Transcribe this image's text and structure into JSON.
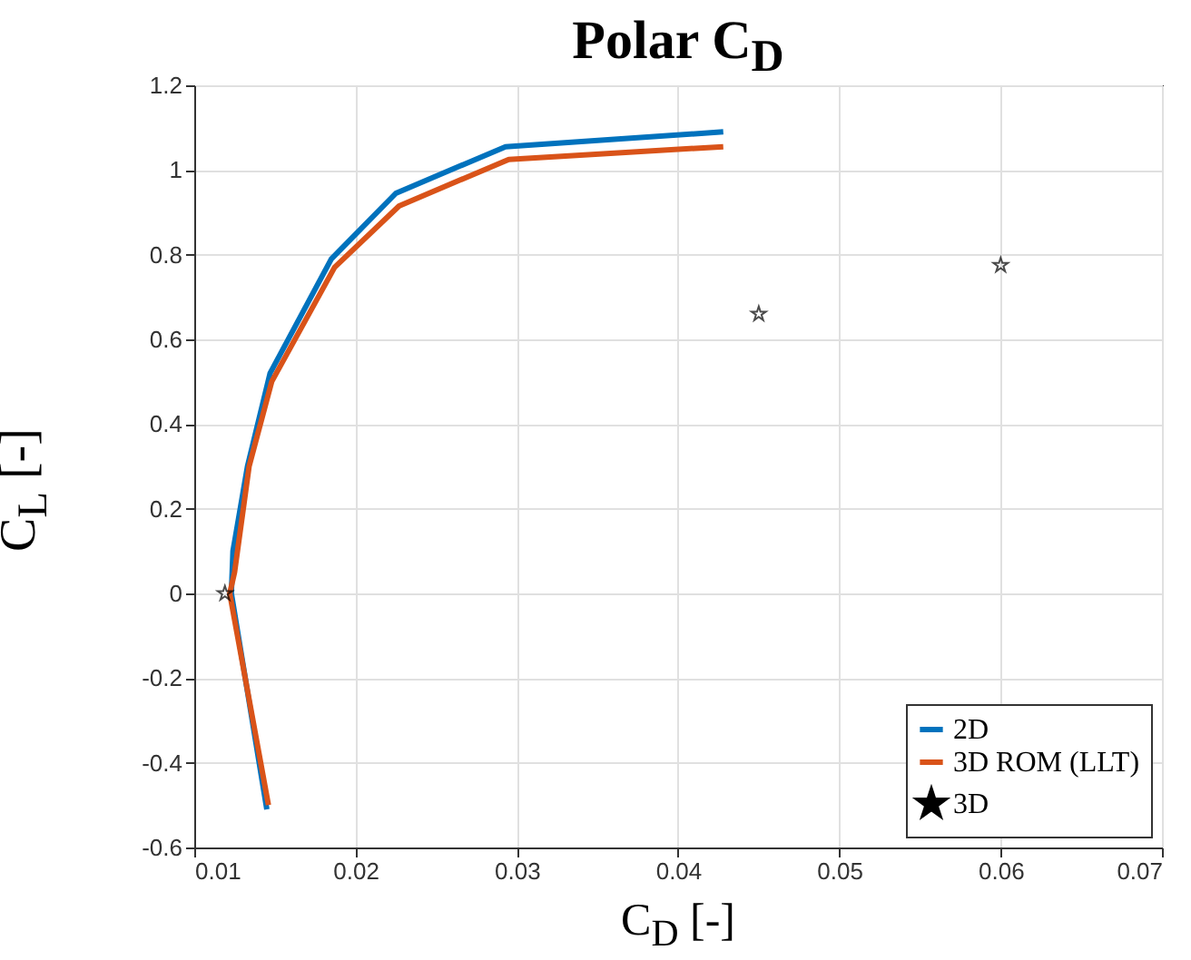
{
  "chart_data": {
    "type": "line",
    "title": "Polar C$_{D}$",
    "xlabel": "C$_{D}$  [-]",
    "ylabel": "C$_{L}$  [-]",
    "xlim": [
      0.01,
      0.07
    ],
    "xticks": [
      0.01,
      0.02,
      0.03,
      0.04,
      0.05,
      0.06,
      0.07
    ],
    "ylim": [
      -0.6,
      1.2
    ],
    "yticks": [
      -0.6,
      -0.4,
      -0.2,
      0,
      0.2,
      0.4,
      0.6,
      0.8,
      1,
      1.2
    ],
    "grid": true,
    "legend": "bottom right",
    "line_style": "solid",
    "series": [
      {
        "name": "2D",
        "color": "#0072bd",
        "x": [
          0.0145,
          0.0123,
          0.0124,
          0.0133,
          0.0147,
          0.0185,
          0.0225,
          0.0293,
          0.0428
        ],
        "values": [
          -0.51,
          0.0,
          0.1,
          0.3,
          0.52,
          0.79,
          0.945,
          1.055,
          1.09
        ]
      },
      {
        "name": "3D ROM (LLT)",
        "color": "#d95319",
        "x": [
          0.0146,
          0.0122,
          0.0125,
          0.0134,
          0.0148,
          0.0187,
          0.0227,
          0.0295,
          0.0428
        ],
        "values": [
          -0.5,
          0.0,
          0.05,
          0.3,
          0.5,
          0.77,
          0.915,
          1.025,
          1.055
        ]
      },
      {
        "name": "3D",
        "type": "scatter",
        "marker": "star",
        "color": "#000000",
        "x": [
          0.0119,
          0.045,
          0.06
        ],
        "values": [
          0.0,
          0.66,
          0.775
        ]
      }
    ]
  }
}
